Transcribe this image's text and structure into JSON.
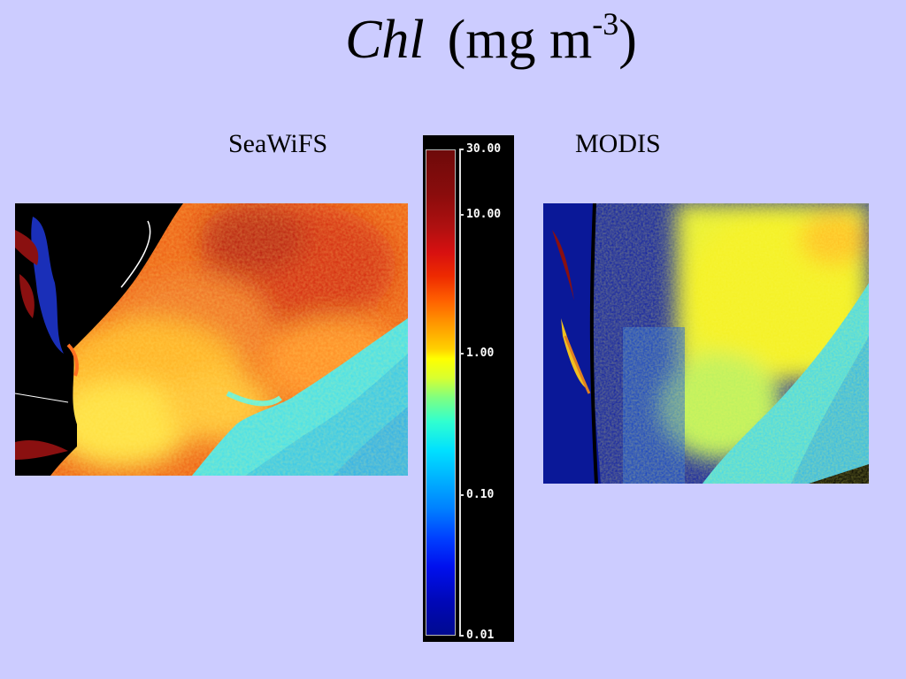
{
  "title": {
    "variable": "Chl",
    "unit": "(mg m",
    "exponent": "-3",
    "close": ")"
  },
  "panels": {
    "left_label": "SeaWiFS",
    "right_label": "MODIS"
  },
  "colorbar": {
    "ticks": [
      {
        "label": "30.00",
        "fraction": 0.0
      },
      {
        "label": "10.00",
        "fraction": 0.134
      },
      {
        "label": "1.00",
        "fraction": 0.42
      },
      {
        "label": "0.10",
        "fraction": 0.71
      },
      {
        "label": "0.01",
        "fraction": 1.0
      }
    ]
  }
}
